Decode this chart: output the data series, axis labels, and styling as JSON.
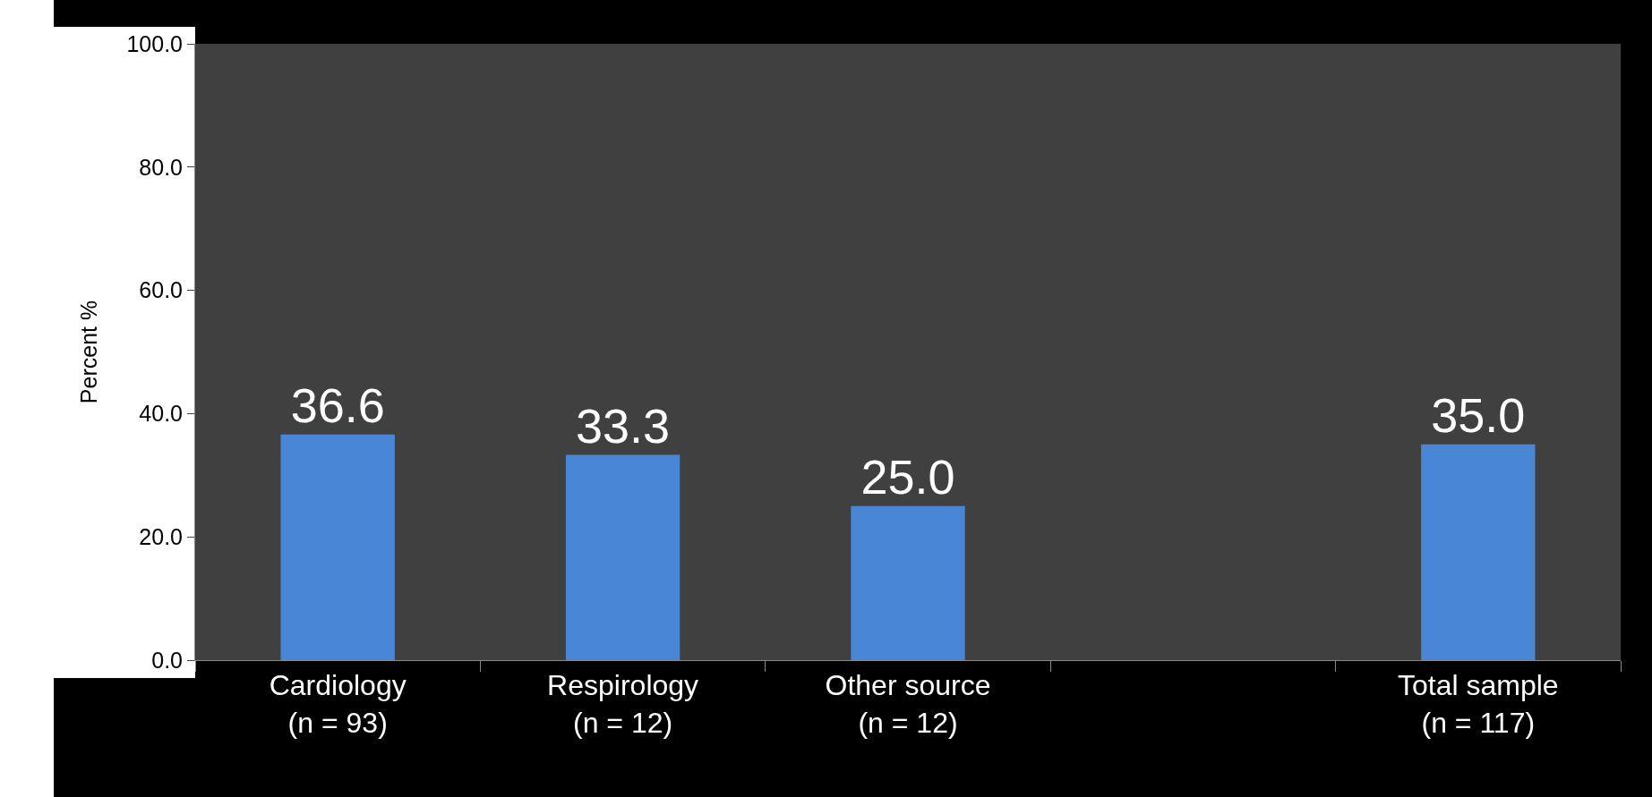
{
  "chart_data": {
    "type": "bar",
    "ylabel": "Percent %",
    "categories": [
      "Cardiology\n(n = 93)",
      "Respirology\n(n = 12)",
      "Other source\n(n = 12)",
      null,
      "Total sample\n(n = 117)"
    ],
    "values": [
      36.6,
      33.3,
      25.0,
      null,
      35.0
    ],
    "value_labels": [
      "36.6",
      "33.3",
      "25.0",
      null,
      "35.0"
    ],
    "color": "#4a86d6",
    "ylim": [
      0,
      100
    ],
    "yticks": [
      {
        "value": 0,
        "label": "0.0"
      },
      {
        "value": 20,
        "label": "20.0"
      },
      {
        "value": 40,
        "label": "40.0"
      },
      {
        "value": 60,
        "label": "60.0"
      },
      {
        "value": 80,
        "label": "80.0"
      },
      {
        "value": 100,
        "label": "100.0"
      }
    ],
    "legend": false
  }
}
